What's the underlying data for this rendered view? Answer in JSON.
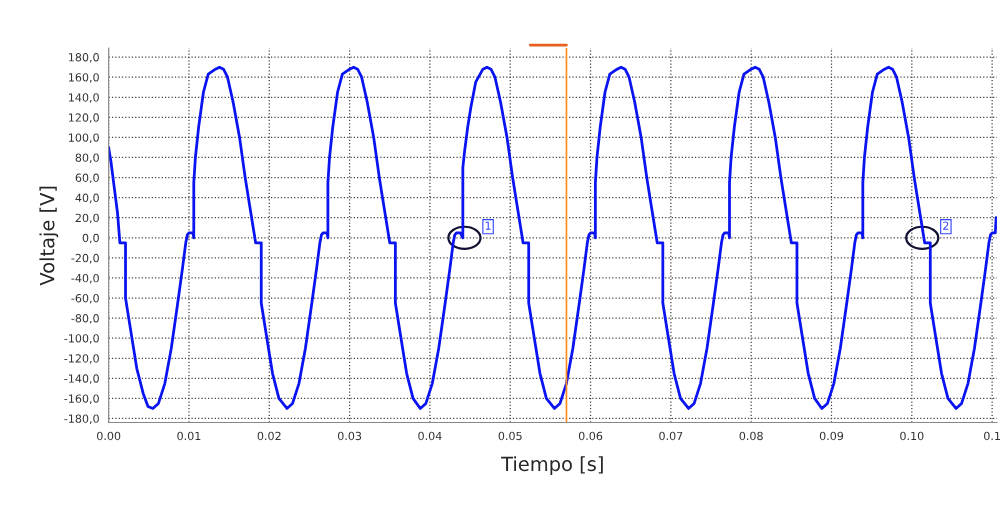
{
  "chart_data": {
    "type": "line",
    "xlabel": "Tiempo [s]",
    "ylabel": "Voltaje [V]",
    "xlim": [
      0,
      0.1106
    ],
    "ylim": [
      -184,
      189
    ],
    "xticks": [
      {
        "value": 0,
        "label": "0.00"
      },
      {
        "value": 0.01,
        "label": "0.01"
      },
      {
        "value": 0.02,
        "label": "0.02"
      },
      {
        "value": 0.03,
        "label": "0.03"
      },
      {
        "value": 0.04,
        "label": "0.04"
      },
      {
        "value": 0.05,
        "label": "0.05"
      },
      {
        "value": 0.06,
        "label": "0.06"
      },
      {
        "value": 0.07,
        "label": "0.07"
      },
      {
        "value": 0.08,
        "label": "0.08"
      },
      {
        "value": 0.09,
        "label": "0.09"
      },
      {
        "value": 0.1,
        "label": "0.10"
      },
      {
        "value": 0.11,
        "label": "0.1"
      }
    ],
    "yticks": [
      {
        "value": 180,
        "label": "180,0"
      },
      {
        "value": 160,
        "label": "160,0"
      },
      {
        "value": 140,
        "label": "140,0"
      },
      {
        "value": 120,
        "label": "120,0"
      },
      {
        "value": 100,
        "label": "100,0"
      },
      {
        "value": 80,
        "label": "80,0"
      },
      {
        "value": 60,
        "label": "60,0"
      },
      {
        "value": 40,
        "label": "40,0"
      },
      {
        "value": 20,
        "label": "20,0"
      },
      {
        "value": 0,
        "label": "0,0"
      },
      {
        "value": -20,
        "label": "-20,0"
      },
      {
        "value": -40,
        "label": "-40,0"
      },
      {
        "value": -60,
        "label": "-60,0"
      },
      {
        "value": -80,
        "label": "-80,0"
      },
      {
        "value": -100,
        "label": "-100,0"
      },
      {
        "value": -120,
        "label": "-120,0"
      },
      {
        "value": -140,
        "label": "-140,0"
      },
      {
        "value": -160,
        "label": "-160,0"
      },
      {
        "value": -180,
        "label": "-180,0"
      }
    ],
    "grid": true,
    "line_style": "solid",
    "marker": "none",
    "series": [
      {
        "color": "#0a14f0",
        "x": [
          0,
          0.0003,
          0.0007,
          0.0011,
          0.0014,
          0.0021,
          0.0021,
          0.0027,
          0.0035,
          0.0043,
          0.0049,
          0.0055,
          0.0062,
          0.007,
          0.0078,
          0.0086,
          0.0092,
          0.0096,
          0.0098,
          0.01,
          0.0105,
          0.0106,
          0.0106,
          0.0108,
          0.0112,
          0.0118,
          0.0124,
          0.0133,
          0.0138,
          0.0143,
          0.0148,
          0.0155,
          0.0163,
          0.017,
          0.0176,
          0.0181,
          0.0183,
          0.019,
          0.019,
          0.0196,
          0.0204,
          0.0212,
          0.0222,
          0.0229,
          0.0237,
          0.0245,
          0.0253,
          0.0259,
          0.0263,
          0.0265,
          0.0267,
          0.0272,
          0.0273,
          0.0273,
          0.0275,
          0.0279,
          0.0285,
          0.0291,
          0.03,
          0.0305,
          0.031,
          0.0315,
          0.0322,
          0.033,
          0.0337,
          0.0343,
          0.0348,
          0.035,
          0.0357,
          0.0357,
          0.0363,
          0.0371,
          0.0379,
          0.0388,
          0.0395,
          0.0403,
          0.0411,
          0.0419,
          0.0425,
          0.0429,
          0.0431,
          0.0433,
          0.0438,
          0.0441,
          0.0441,
          0.0443,
          0.0447,
          0.0451,
          0.0457,
          0.0466,
          0.0471,
          0.0476,
          0.0481,
          0.0488,
          0.0496,
          0.0503,
          0.0509,
          0.0514,
          0.0516,
          0.0523,
          0.0523,
          0.0529,
          0.0537,
          0.0545,
          0.0555,
          0.0562,
          0.057,
          0.0578,
          0.0586,
          0.0592,
          0.0596,
          0.0598,
          0.06,
          0.0605,
          0.0606,
          0.0606,
          0.0608,
          0.0612,
          0.0618,
          0.0624,
          0.0633,
          0.0638,
          0.0643,
          0.0648,
          0.0655,
          0.0663,
          0.067,
          0.0676,
          0.0681,
          0.0683,
          0.069,
          0.069,
          0.0696,
          0.0704,
          0.0712,
          0.0722,
          0.0729,
          0.0737,
          0.0745,
          0.0753,
          0.0759,
          0.0763,
          0.0765,
          0.0767,
          0.0772,
          0.0773,
          0.0773,
          0.0775,
          0.0779,
          0.0785,
          0.0791,
          0.08,
          0.0805,
          0.081,
          0.0815,
          0.0822,
          0.083,
          0.0837,
          0.0843,
          0.0848,
          0.085,
          0.0857,
          0.0857,
          0.0863,
          0.0871,
          0.0879,
          0.0888,
          0.0895,
          0.0903,
          0.0911,
          0.0919,
          0.0925,
          0.0929,
          0.0931,
          0.0933,
          0.0938,
          0.0939,
          0.0939,
          0.0941,
          0.0945,
          0.0951,
          0.0957,
          0.0966,
          0.0971,
          0.0976,
          0.0981,
          0.0988,
          0.0996,
          0.1003,
          0.1009,
          0.1014,
          0.1016,
          0.1023,
          0.1023,
          0.1029,
          0.1037,
          0.1045,
          0.1055,
          0.1062,
          0.107,
          0.1078,
          0.1086,
          0.1092,
          0.1096,
          0.1098,
          0.11,
          0.1104,
          0.1105
        ],
        "values": [
          90,
          75,
          50,
          25,
          -5,
          -5,
          -60,
          -90,
          -130,
          -155,
          -168,
          -170,
          -165,
          -145,
          -110,
          -65,
          -30,
          -5,
          3,
          5,
          5,
          0,
          55,
          80,
          110,
          145,
          163,
          168,
          170,
          168,
          160,
          135,
          100,
          60,
          30,
          5,
          -5,
          -5,
          -65,
          -95,
          -135,
          -160,
          -170,
          -165,
          -145,
          -110,
          -65,
          -30,
          -5,
          3,
          5,
          5,
          0,
          55,
          80,
          110,
          145,
          163,
          168,
          170,
          168,
          160,
          135,
          100,
          60,
          30,
          5,
          -5,
          -5,
          -65,
          -95,
          -135,
          -160,
          -170,
          -165,
          -145,
          -110,
          -65,
          -30,
          -5,
          3,
          5,
          5,
          0,
          70,
          85,
          110,
          130,
          155,
          168,
          170,
          168,
          160,
          135,
          100,
          60,
          30,
          5,
          -5,
          -5,
          -65,
          -95,
          -135,
          -160,
          -170,
          -165,
          -145,
          -110,
          -65,
          -30,
          -5,
          3,
          5,
          5,
          0,
          55,
          80,
          110,
          145,
          163,
          168,
          170,
          168,
          160,
          135,
          100,
          60,
          30,
          5,
          -5,
          -5,
          -65,
          -95,
          -135,
          -160,
          -170,
          -165,
          -145,
          -110,
          -65,
          -30,
          -5,
          3,
          5,
          5,
          0,
          55,
          80,
          110,
          145,
          163,
          168,
          170,
          168,
          160,
          135,
          100,
          60,
          30,
          5,
          -5,
          -5,
          -65,
          -95,
          -135,
          -160,
          -170,
          -165,
          -145,
          -110,
          -65,
          -30,
          -5,
          3,
          5,
          5,
          0,
          55,
          80,
          110,
          145,
          163,
          168,
          170,
          168,
          160,
          135,
          100,
          60,
          30,
          5,
          -5,
          -5,
          -65,
          -95,
          -135,
          -160,
          -170,
          -165,
          -145,
          -110,
          -65,
          -30,
          -5,
          3,
          5,
          5,
          20
        ]
      }
    ],
    "ref_lines": [
      {
        "axis": "x",
        "value": 0.057,
        "color": "#ff8c1a",
        "line_style": "solid"
      }
    ],
    "annotations": [
      {
        "text": "1",
        "x": 0.0443,
        "y": 0
      },
      {
        "text": "2",
        "x": 0.1013,
        "y": 0
      }
    ]
  }
}
